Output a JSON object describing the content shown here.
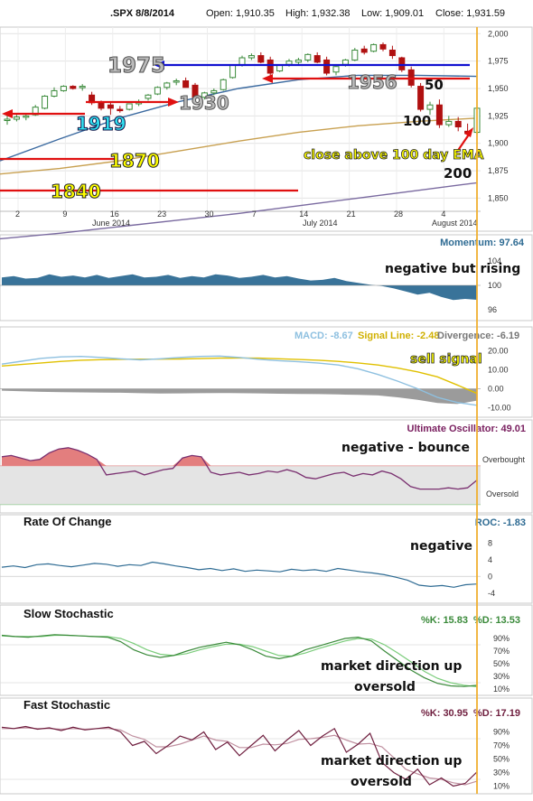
{
  "header": {
    "symbol": ".SPX 8/8/2014",
    "open": "Open: 1,910.35",
    "high": "High: 1,932.38",
    "low": "Low: 1,909.01",
    "close": "Close: 1,931.59"
  },
  "colors": {
    "bull_candle": "#3a8a3a",
    "bear_candle": "#b01010",
    "ma50": "#3b6aa0",
    "ma100": "#c8a050",
    "ma200": "#7a6aa0",
    "momentum_fill": "#2e6b93",
    "macd_line": "#8ec0e0",
    "signal_line": "#e0c000",
    "ult_fill": "#e07070",
    "ult_line": "#7a3070",
    "roc_line": "#2e6b93",
    "slow_k": "#3a8a3a",
    "slow_d": "#7acc7a",
    "fast_k": "#702040",
    "fast_d": "#c090a0",
    "arrow_red": "#e01010",
    "arrow_blue": "#1010d0",
    "annotation_yellow": "#ffff00"
  },
  "chart_data": [
    {
      "type": "candlestick",
      "title": ".SPX 8/8/2014",
      "x_tick_labels": [
        "2",
        "9",
        "16",
        "23",
        "30",
        "7",
        "14",
        "21",
        "28",
        "4"
      ],
      "month_labels": [
        "June 2014",
        "July 2014",
        "August 2014"
      ],
      "y_tick_labels": [
        "2,000",
        "1,975",
        "1,950",
        "1,925",
        "1,900",
        "1,875",
        "1,850"
      ],
      "ylim": [
        1838,
        2006
      ],
      "ohlc": [
        [
          1921,
          1926,
          1917,
          1922
        ],
        [
          1922,
          1926,
          1920,
          1924
        ],
        [
          1924,
          1927,
          1921,
          1925
        ],
        [
          1926,
          1935,
          1925,
          1933
        ],
        [
          1932,
          1944,
          1931,
          1943
        ],
        [
          1943,
          1951,
          1942,
          1948
        ],
        [
          1948,
          1953,
          1947,
          1952
        ],
        [
          1952,
          1953,
          1949,
          1950
        ],
        [
          1951,
          1954,
          1948,
          1952
        ],
        [
          1944,
          1947,
          1935,
          1937
        ],
        [
          1938,
          1939,
          1930,
          1932
        ],
        [
          1935,
          1937,
          1926,
          1932
        ],
        [
          1931,
          1934,
          1928,
          1930
        ],
        [
          1931,
          1936,
          1930,
          1936
        ],
        [
          1936,
          1940,
          1934,
          1938
        ],
        [
          1941,
          1945,
          1939,
          1944
        ],
        [
          1945,
          1952,
          1944,
          1951
        ],
        [
          1951,
          1956,
          1949,
          1955
        ],
        [
          1956,
          1959,
          1953,
          1957
        ],
        [
          1957,
          1960,
          1951,
          1951
        ],
        [
          1953,
          1955,
          1941,
          1942
        ],
        [
          1942,
          1947,
          1940,
          1946
        ],
        [
          1946,
          1950,
          1944,
          1948
        ],
        [
          1949,
          1959,
          1948,
          1958
        ],
        [
          1960,
          1972,
          1959,
          1971
        ],
        [
          1971,
          1980,
          1970,
          1978
        ],
        [
          1978,
          1982,
          1976,
          1980
        ],
        [
          1980,
          1983,
          1973,
          1974
        ],
        [
          1976,
          1979,
          1962,
          1964
        ],
        [
          1966,
          1972,
          1965,
          1971
        ],
        [
          1972,
          1977,
          1970,
          1975
        ],
        [
          1974,
          1978,
          1972,
          1976
        ],
        [
          1976,
          1982,
          1974,
          1981
        ],
        [
          1980,
          1983,
          1973,
          1974
        ],
        [
          1976,
          1979,
          1962,
          1964
        ],
        [
          1965,
          1972,
          1962,
          1970
        ],
        [
          1972,
          1977,
          1970,
          1976
        ],
        [
          1976,
          1987,
          1975,
          1985
        ],
        [
          1986,
          1989,
          1981,
          1983
        ],
        [
          1984,
          1991,
          1983,
          1990
        ],
        [
          1990,
          1992,
          1984,
          1986
        ],
        [
          1985,
          1989,
          1977,
          1980
        ],
        [
          1978,
          1979,
          1965,
          1967
        ],
        [
          1967,
          1970,
          1951,
          1953
        ],
        [
          1952,
          1955,
          1929,
          1931
        ],
        [
          1931,
          1938,
          1926,
          1935
        ],
        [
          1935,
          1940,
          1914,
          1917
        ],
        [
          1917,
          1925,
          1915,
          1920
        ],
        [
          1920,
          1924,
          1911,
          1915
        ],
        [
          1911,
          1918,
          1905,
          1909
        ],
        [
          1910,
          1933,
          1909,
          1932
        ]
      ],
      "ma_lines": [
        {
          "name": "50",
          "values": [
            1884,
            1904,
            1923,
            1938,
            1950,
            1958,
            1962,
            1962,
            1961
          ]
        },
        {
          "name": "100",
          "values": [
            1872,
            1877,
            1884,
            1893,
            1902,
            1910,
            1916,
            1920,
            1923
          ]
        },
        {
          "name": "200",
          "values": [
            1813,
            1818,
            1824,
            1830,
            1836,
            1843,
            1850,
            1857,
            1864
          ]
        }
      ],
      "annotations": [
        {
          "label": "1975",
          "value": 1975
        },
        {
          "label": "1956",
          "value": 1956
        },
        {
          "label": "1930",
          "value": 1930
        },
        {
          "label": "1919",
          "value": 1919
        },
        {
          "label": "1870",
          "value": 1870
        },
        {
          "label": "1840",
          "value": 1840
        },
        {
          "label": "50",
          "value": 1953
        },
        {
          "label": "100",
          "value": 1914
        },
        {
          "label": "200",
          "value": 1856
        },
        {
          "label": "close above 100 day EMA",
          "value": 1895
        }
      ]
    },
    {
      "type": "area",
      "title": "Momentum",
      "readout": "Momentum: 97.64",
      "y_tick_labels": [
        "104",
        "100",
        "96"
      ],
      "ylim": [
        95,
        105
      ],
      "values": [
        101.3,
        101.5,
        101.1,
        101.2,
        101.8,
        101.4,
        101.6,
        101.3,
        101.7,
        101.2,
        101.5,
        101.8,
        101.3,
        101.4,
        101.7,
        101.2,
        101.5,
        101.3,
        101.8,
        101.6,
        101.2,
        101.4,
        101.7,
        101.3,
        101.5,
        101.1,
        100.8,
        100.9,
        101.2,
        100.7,
        100.4,
        100.1,
        99.9,
        99.5,
        99.0,
        98.5,
        98.8,
        98.1,
        97.6,
        97.8,
        97.64
      ],
      "annotation": "negative but rising"
    },
    {
      "type": "line",
      "title": "MACD",
      "readout_macd": "MACD: -8.67",
      "readout_signal": "Signal Line: -2.48",
      "readout_divergence": "Divergence: -6.19",
      "y_tick_labels": [
        "20.00",
        "10.00",
        "0.00",
        "-10.00"
      ],
      "ylim": [
        -14,
        24
      ],
      "series": [
        {
          "name": "MACD",
          "values": [
            13,
            14.5,
            16,
            16.8,
            17,
            16.5,
            15.8,
            15.2,
            15.8,
            16.5,
            17,
            17.2,
            16.5,
            15.5,
            14.8,
            14.2,
            13.5,
            12.5,
            10.5,
            7.5,
            4,
            0,
            -4.5,
            -7.2,
            -8.67
          ]
        },
        {
          "name": "Signal Line",
          "values": [
            12,
            12.8,
            13.6,
            14.4,
            15,
            15.3,
            15.5,
            15.6,
            15.6,
            15.7,
            15.9,
            16.1,
            16.2,
            16.1,
            15.8,
            15.4,
            15,
            14.4,
            13.6,
            12.5,
            10.9,
            8.9,
            6.3,
            2,
            -2.48
          ]
        },
        {
          "name": "Divergence",
          "values": [
            -1,
            -1.3,
            -1.6,
            -1.8,
            -1.9,
            -2,
            -2.1,
            -2.3,
            -2.5,
            -2.4,
            -2.3,
            -2.2,
            -2.3,
            -2.4,
            -2.6,
            -2.7,
            -2.8,
            -3,
            -3.2,
            -3.5,
            -4.5,
            -5.8,
            -7.5,
            -8,
            -6.19
          ]
        }
      ],
      "annotation": "sell signal"
    },
    {
      "type": "line",
      "title": "Ultimate Oscillator",
      "readout": "Ultimate Oscillator: 49.01",
      "overbought_label": "Overbought",
      "oversold_label": "Oversold",
      "ylim": [
        25,
        85
      ],
      "values": [
        67,
        68,
        66,
        64,
        65,
        70,
        73,
        74,
        72,
        69,
        65,
        53,
        54,
        55,
        56,
        53,
        55,
        57,
        58,
        66,
        68,
        67,
        55,
        53,
        54,
        55,
        53,
        54,
        56,
        55,
        57,
        55,
        51,
        50,
        52,
        54,
        55,
        52,
        54,
        53,
        56,
        54,
        50,
        44,
        42,
        42,
        42,
        43,
        42,
        43,
        49.01
      ],
      "annotation": "negative - bounce"
    },
    {
      "type": "line",
      "title": "Rate Of Change",
      "readout": "ROC: -1.83",
      "y_tick_labels": [
        "8",
        "4",
        "0",
        "-4"
      ],
      "ylim": [
        -6,
        10
      ],
      "values": [
        2.2,
        2.5,
        2.1,
        2.8,
        3,
        2.6,
        2.3,
        2.7,
        3.1,
        2.9,
        2.4,
        2.8,
        2.6,
        3.4,
        3,
        2.5,
        2.1,
        1.6,
        1.9,
        1.4,
        1.8,
        1.2,
        1.5,
        1.3,
        1.1,
        1.7,
        1.4,
        1.6,
        1.2,
        1.9,
        1.5,
        1.1,
        0.8,
        0.4,
        -0.2,
        -0.9,
        -2.1,
        -2.4,
        -2.2,
        -2.6,
        -2,
        -1.83
      ],
      "annotation": "negative"
    },
    {
      "type": "line",
      "title": "Slow Stochastic",
      "readout_k": "%K: 15.83",
      "readout_d": "%D: 13.53",
      "y_tick_labels": [
        "90%",
        "70%",
        "50%",
        "30%",
        "10%"
      ],
      "ylim": [
        0,
        100
      ],
      "series": [
        {
          "name": "%K",
          "values": [
            95,
            93,
            92,
            94,
            96,
            95,
            94,
            93,
            92,
            85,
            72,
            64,
            60,
            63,
            70,
            76,
            80,
            84,
            80,
            72,
            62,
            58,
            62,
            72,
            78,
            84,
            90,
            92,
            86,
            70,
            55,
            40,
            28,
            19,
            15,
            14,
            15.83
          ]
        },
        {
          "name": "%D",
          "values": [
            94,
            93,
            93,
            93,
            95,
            95,
            94,
            93,
            93,
            90,
            82,
            72,
            65,
            63,
            66,
            72,
            77,
            81,
            81,
            77,
            70,
            63,
            62,
            67,
            74,
            80,
            86,
            90,
            89,
            80,
            67,
            53,
            38,
            27,
            20,
            16,
            13.53
          ]
        }
      ],
      "annotations": [
        "market direction up",
        "oversold"
      ]
    },
    {
      "type": "line",
      "title": "Fast Stochastic",
      "readout_k": "%K: 30.95",
      "readout_d": "%D: 17.19",
      "y_tick_labels": [
        "90%",
        "70%",
        "50%",
        "30%",
        "10%"
      ],
      "ylim": [
        0,
        100
      ],
      "series": [
        {
          "name": "%K",
          "values": [
            97,
            95,
            98,
            94,
            96,
            92,
            97,
            93,
            95,
            97,
            90,
            70,
            76,
            58,
            70,
            84,
            78,
            90,
            64,
            75,
            55,
            70,
            85,
            62,
            78,
            92,
            70,
            84,
            95,
            60,
            72,
            88,
            45,
            30,
            20,
            35,
            12,
            22,
            10,
            14,
            30.95
          ]
        },
        {
          "name": "%D",
          "values": [
            95,
            95,
            96,
            95,
            95,
            94,
            95,
            94,
            95,
            95,
            93,
            84,
            79,
            68,
            68,
            72,
            78,
            84,
            78,
            76,
            67,
            67,
            72,
            71,
            73,
            79,
            80,
            82,
            85,
            78,
            72,
            73,
            68,
            52,
            35,
            28,
            22,
            20,
            15,
            12,
            17.19
          ]
        }
      ],
      "annotations": [
        "market direction up",
        "oversold"
      ]
    }
  ]
}
